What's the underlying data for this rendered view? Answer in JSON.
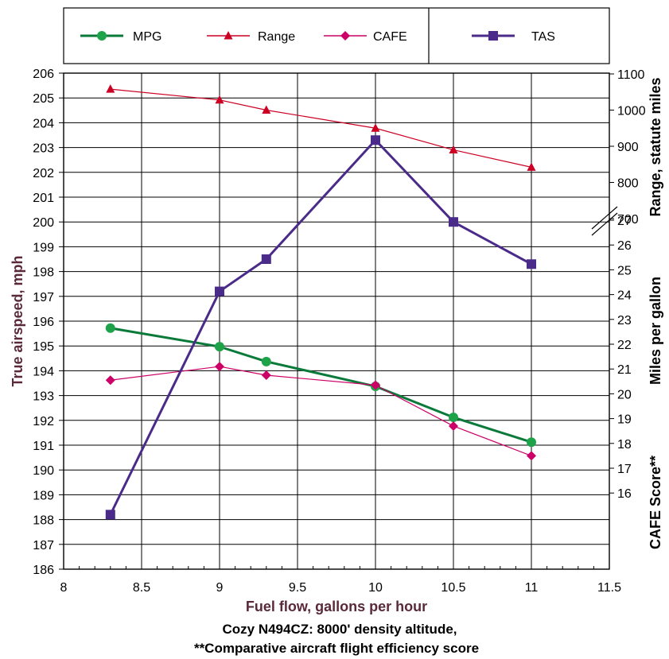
{
  "chart_data": {
    "type": "line",
    "x": [
      8.3,
      9,
      9.3,
      10,
      10.5,
      11
    ],
    "xlabel": "Fuel flow, gallons per hour",
    "xlim": [
      8,
      11.5
    ],
    "xticks": [
      "8",
      "8.5",
      "9",
      "9.5",
      "10",
      "10.5",
      "11",
      "11.5"
    ],
    "left_axis": {
      "label": "True airspeed, mph",
      "ylim": [
        186,
        206
      ],
      "ticks": [
        "186",
        "187",
        "188",
        "189",
        "190",
        "191",
        "192",
        "193",
        "194",
        "195",
        "196",
        "197",
        "198",
        "199",
        "200",
        "201",
        "202",
        "203",
        "204",
        "205",
        "206"
      ]
    },
    "right_axes": [
      {
        "label": "Range, statute miles",
        "ylim": [
          700,
          1100
        ],
        "ticks": [
          "700",
          "800",
          "900",
          "1000",
          "1100"
        ]
      },
      {
        "label": "Miles per gallon",
        "ylim": [
          16,
          27
        ],
        "ticks": [
          "27",
          "26",
          "25",
          "24",
          "23",
          "22",
          "21",
          "20"
        ]
      },
      {
        "label": "CAFE Score**",
        "ticks": [
          "19",
          "18",
          "17",
          "16"
        ]
      }
    ],
    "series": [
      {
        "name": "MPG",
        "color": "#0a7a3a",
        "marker": "circle",
        "axis": "mpg",
        "values": [
          22.65,
          21.9,
          21.3,
          20.3,
          19.05,
          18.05
        ]
      },
      {
        "name": "Range",
        "color": "#cc0022",
        "marker": "triangle",
        "axis": "range",
        "values": [
          1058,
          1028,
          1000,
          950,
          890,
          842
        ]
      },
      {
        "name": "CAFE",
        "color": "#cc0066",
        "marker": "diamond",
        "axis": "cafe",
        "values": [
          20.55,
          21.1,
          20.75,
          20.35,
          18.7,
          17.5
        ]
      },
      {
        "name": "TAS",
        "color": "#4b2b8a",
        "marker": "square",
        "axis": "left",
        "values": [
          188.2,
          197.2,
          198.5,
          203.3,
          200.0,
          198.3
        ]
      }
    ],
    "caption_line1": "Cozy N494CZ: 8000' density altitude,",
    "caption_line2": "**Comparative aircraft flight efficiency score",
    "grid": true,
    "legend": "top"
  }
}
